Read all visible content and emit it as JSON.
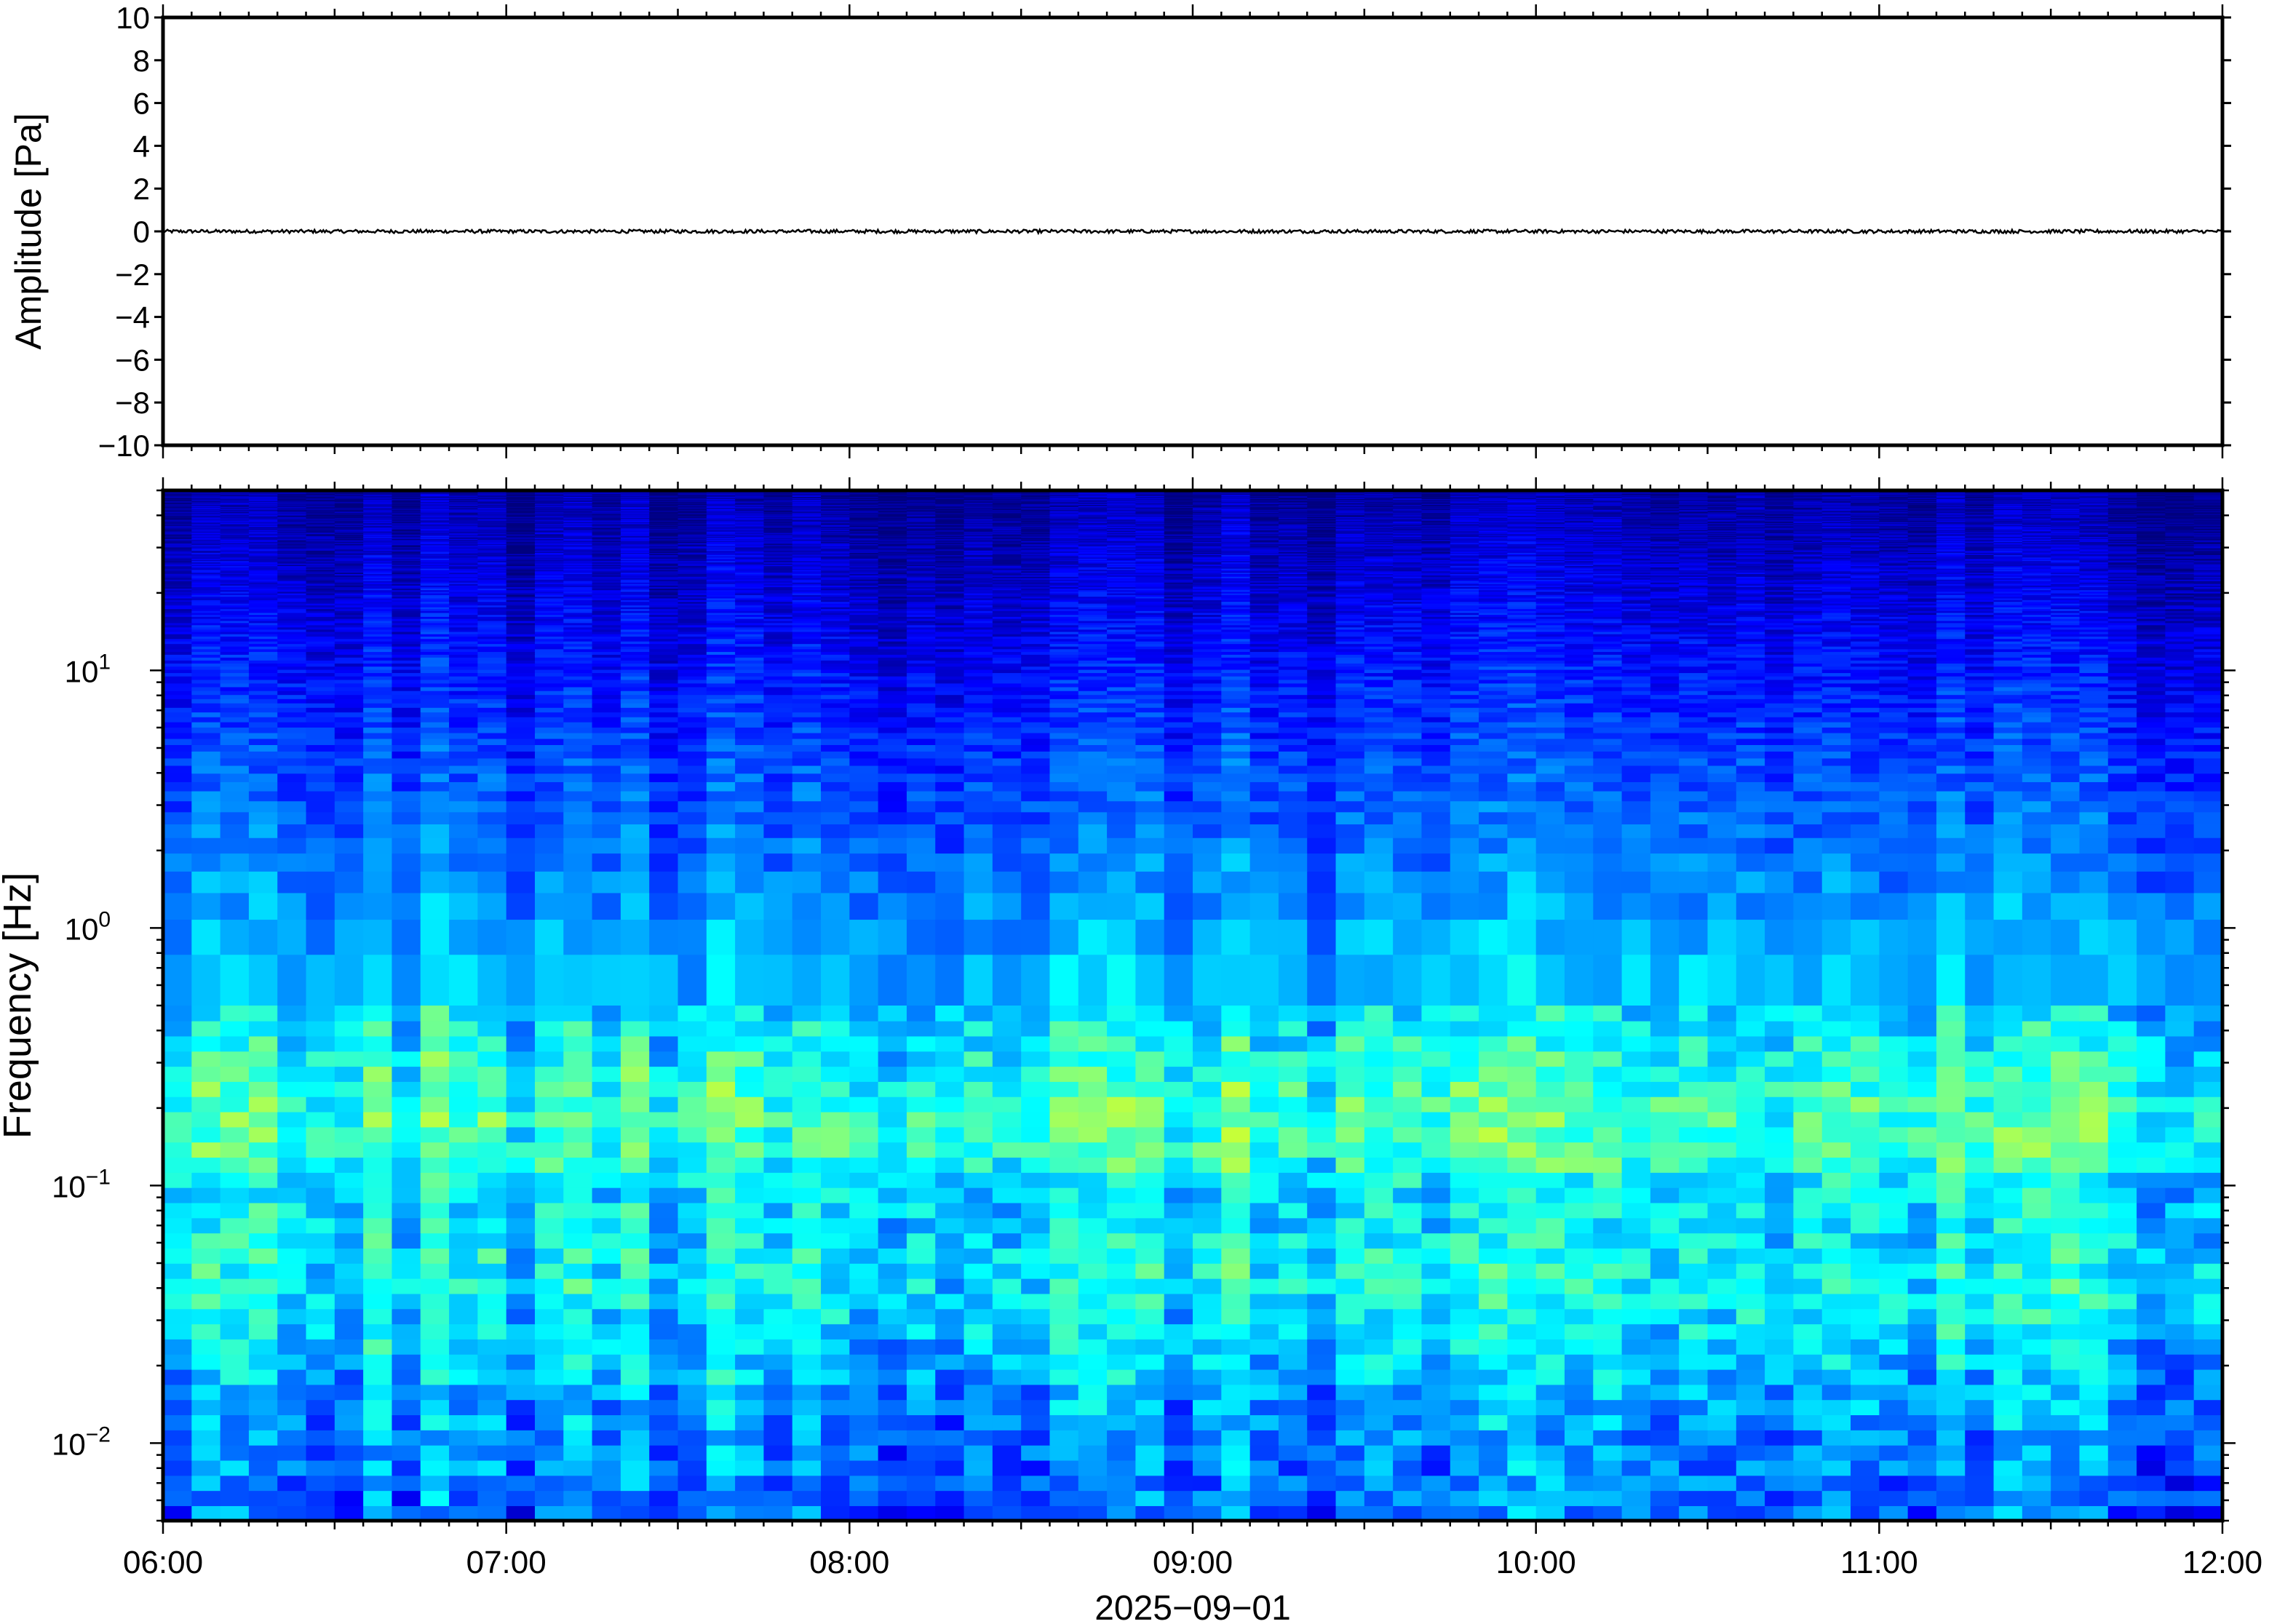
{
  "chart_data": [
    {
      "type": "line",
      "panel": "waveform",
      "ylabel": "Amplitude [Pa]",
      "ylim": [
        -10,
        10
      ],
      "yticks": [
        10,
        8,
        6,
        4,
        2,
        0,
        -2,
        -4,
        -6,
        -8,
        -10
      ],
      "ytick_labels": [
        "10",
        "8",
        "6",
        "4",
        "2",
        "0",
        "−2",
        "−4",
        "−6",
        "−8",
        "−10"
      ],
      "xlim": [
        "06:00",
        "12:00"
      ],
      "series": [
        {
          "noise_amplitude": 0.08,
          "mean": 0.0,
          "color": "#000000"
        }
      ]
    },
    {
      "type": "heatmap",
      "panel": "spectrogram",
      "ylabel": "Frequency [Hz]",
      "yscale": "log",
      "ylim": [
        0.005,
        50
      ],
      "yticks": [
        {
          "value": 10,
          "base": "10",
          "exp": "1"
        },
        {
          "value": 1,
          "base": "10",
          "exp": "0"
        },
        {
          "value": 0.1,
          "base": "10",
          "exp": "−1"
        },
        {
          "value": 0.01,
          "base": "10",
          "exp": "−2"
        }
      ],
      "x_ticks": [
        "06:00",
        "07:00",
        "08:00",
        "09:00",
        "10:00",
        "11:00",
        "12:00"
      ],
      "xlabel": "2025−09−01",
      "xlim": [
        "06:00",
        "12:00"
      ],
      "colormap": [
        "#00007f",
        "#0000ff",
        "#0080ff",
        "#00ffff",
        "#80ff80",
        "#ffff00"
      ],
      "energy_profile": [
        {
          "freq": 50,
          "level": 0.05
        },
        {
          "freq": 10,
          "level": 0.22
        },
        {
          "freq": 2,
          "level": 0.38
        },
        {
          "freq": 0.6,
          "level": 0.5
        },
        {
          "freq": 0.2,
          "level": 0.7
        },
        {
          "freq": 0.13,
          "level": 0.68
        },
        {
          "freq": 0.1,
          "level": 0.55
        },
        {
          "freq": 0.04,
          "level": 0.6
        },
        {
          "freq": 0.01,
          "level": 0.4
        },
        {
          "freq": 0.005,
          "level": 0.35
        }
      ]
    }
  ]
}
